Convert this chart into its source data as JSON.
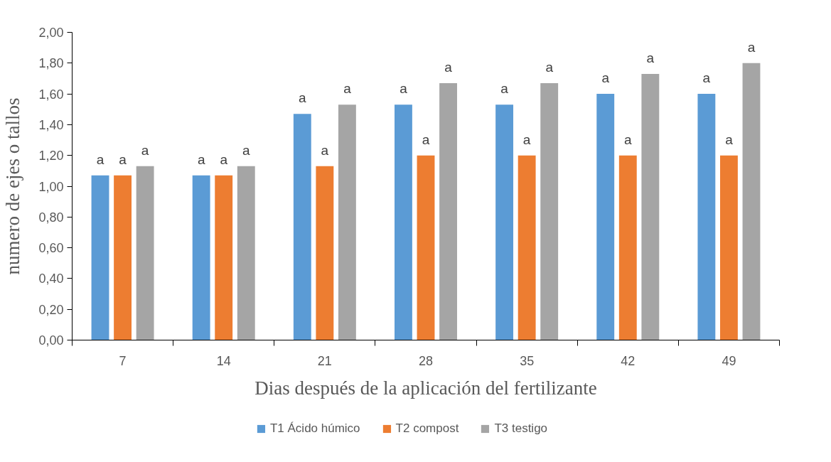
{
  "chart_data": {
    "type": "bar",
    "xlabel": "Dias después de la aplicación del fertilizante",
    "ylabel": "numero de ejes o tallos",
    "categories": [
      "7",
      "14",
      "21",
      "28",
      "35",
      "42",
      "49"
    ],
    "series": [
      {
        "name": "T1 Ácido húmico",
        "color": "#5b9bd5",
        "values": [
          1.07,
          1.07,
          1.47,
          1.53,
          1.53,
          1.6,
          1.6
        ],
        "value_labels": [
          "a",
          "a",
          "a",
          "a",
          "a",
          "a",
          "a"
        ]
      },
      {
        "name": "T2 compost",
        "color": "#ed7d31",
        "values": [
          1.07,
          1.07,
          1.13,
          1.2,
          1.2,
          1.2,
          1.2
        ],
        "value_labels": [
          "a",
          "a",
          "a",
          "a",
          "a",
          "a",
          "a"
        ]
      },
      {
        "name": "T3 testigo",
        "color": "#a5a5a5",
        "values": [
          1.13,
          1.13,
          1.53,
          1.67,
          1.67,
          1.73,
          1.8
        ],
        "value_labels": [
          "a",
          "a",
          "a",
          "a",
          "a",
          "a",
          "a"
        ]
      }
    ],
    "ylim": [
      0,
      2
    ],
    "yticks": [
      {
        "value": 0,
        "label": "0,00"
      },
      {
        "value": 0.2,
        "label": "0,20"
      },
      {
        "value": 0.4,
        "label": "0,40"
      },
      {
        "value": 0.6,
        "label": "0,60"
      },
      {
        "value": 0.8,
        "label": "0,80"
      },
      {
        "value": 1.0,
        "label": "1,00"
      },
      {
        "value": 1.2,
        "label": "1,20"
      },
      {
        "value": 1.4,
        "label": "1,40"
      },
      {
        "value": 1.6,
        "label": "1,60"
      },
      {
        "value": 1.8,
        "label": "1,80"
      },
      {
        "value": 2.0,
        "label": "2,00"
      }
    ],
    "grid": false,
    "legend": "bottom"
  }
}
